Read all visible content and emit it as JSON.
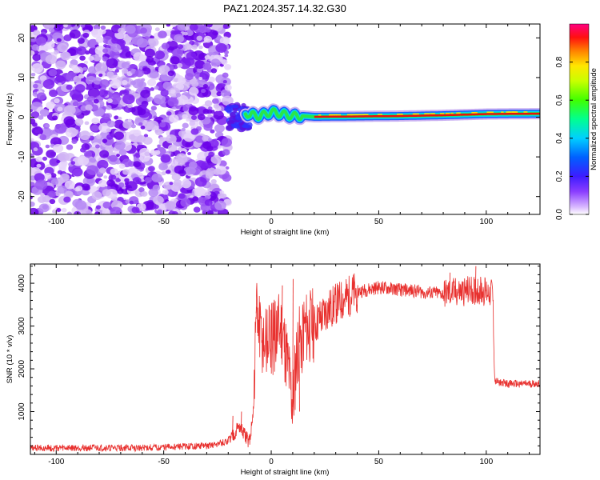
{
  "title": "PAZ1.2024.357.14.32.G30",
  "colors": {
    "background": "#ffffff",
    "snr_line": "#e8302e",
    "speckle_dark": "#6a00e8",
    "speckle_light": "#d4b8f5"
  },
  "chart_data": [
    {
      "type": "heatmap",
      "xlabel": "Height of straight line (km)",
      "ylabel": "Frequency (Hz)",
      "xlim": [
        -112,
        125
      ],
      "ylim": [
        -24.5,
        23.5
      ],
      "xticks": [
        -100,
        -50,
        0,
        50,
        100
      ],
      "yticks": [
        -20,
        -10,
        0,
        10,
        20
      ],
      "grid": false,
      "colormap": "rainbow (magenta at 1.0, red, yellow, green, cyan, blue, violet, white at 0.0)",
      "colorbar": {
        "label": "Normalized spectral amplitude",
        "range": [
          0,
          1
        ],
        "ticks": [
          "0.0",
          "0.2",
          "0.4",
          "0.6",
          "0.8"
        ]
      },
      "regions": [
        {
          "x_range": [
            -112,
            -20
          ],
          "content": "scattered low-amplitude noise across all frequencies"
        },
        {
          "x_range": [
            -20,
            -10
          ],
          "content": "transition, noisy blob near 0 Hz"
        },
        {
          "x_range": [
            -10,
            125
          ],
          "content": "narrow high-amplitude signal band at about 0 to 1 Hz"
        }
      ],
      "signal_track": {
        "x": [
          -10,
          -5,
          0,
          5,
          10,
          15,
          20,
          40,
          60,
          80,
          100,
          125
        ],
        "freq": [
          0.6,
          0.3,
          1.3,
          0.8,
          0.3,
          0.3,
          0.1,
          0.2,
          0.3,
          0.5,
          0.8,
          0.9
        ]
      }
    },
    {
      "type": "line",
      "xlabel": "Height of straight line (km)",
      "ylabel": "SNR (10 * v/v)",
      "xlim": [
        -112,
        125
      ],
      "ylim": [
        0,
        4450
      ],
      "xticks": [
        -100,
        -50,
        0,
        50,
        100
      ],
      "yticks": [
        1000,
        2000,
        3000,
        4000
      ],
      "grid": false,
      "series": [
        {
          "x": [
            -112,
            -60,
            -30,
            -20,
            -17,
            -15,
            -12,
            -10,
            -8,
            -7,
            -5,
            -3,
            0,
            3,
            5,
            8,
            10,
            12,
            15,
            20,
            25,
            30,
            40,
            50,
            60,
            70,
            80,
            90,
            95,
            100,
            103,
            104,
            105,
            110,
            125
          ],
          "y": [
            150,
            150,
            200,
            300,
            500,
            650,
            400,
            300,
            1200,
            3300,
            2700,
            2500,
            2700,
            2900,
            2900,
            2000,
            1100,
            2400,
            2900,
            3000,
            3300,
            3500,
            3800,
            3900,
            3850,
            3800,
            3750,
            3800,
            3850,
            3800,
            3850,
            1700,
            1700,
            1650,
            1650
          ]
        }
      ],
      "spikes": [
        {
          "x": -18,
          "y": 900
        },
        {
          "x": -14,
          "y": 1000
        },
        {
          "x": -7,
          "y": 3450
        },
        {
          "x": 5,
          "y": 3950
        },
        {
          "x": 10,
          "y": 4100
        },
        {
          "x": 13,
          "y": 1000
        },
        {
          "x": 83,
          "y": 4250
        },
        {
          "x": 95,
          "y": 4400
        }
      ]
    }
  ]
}
